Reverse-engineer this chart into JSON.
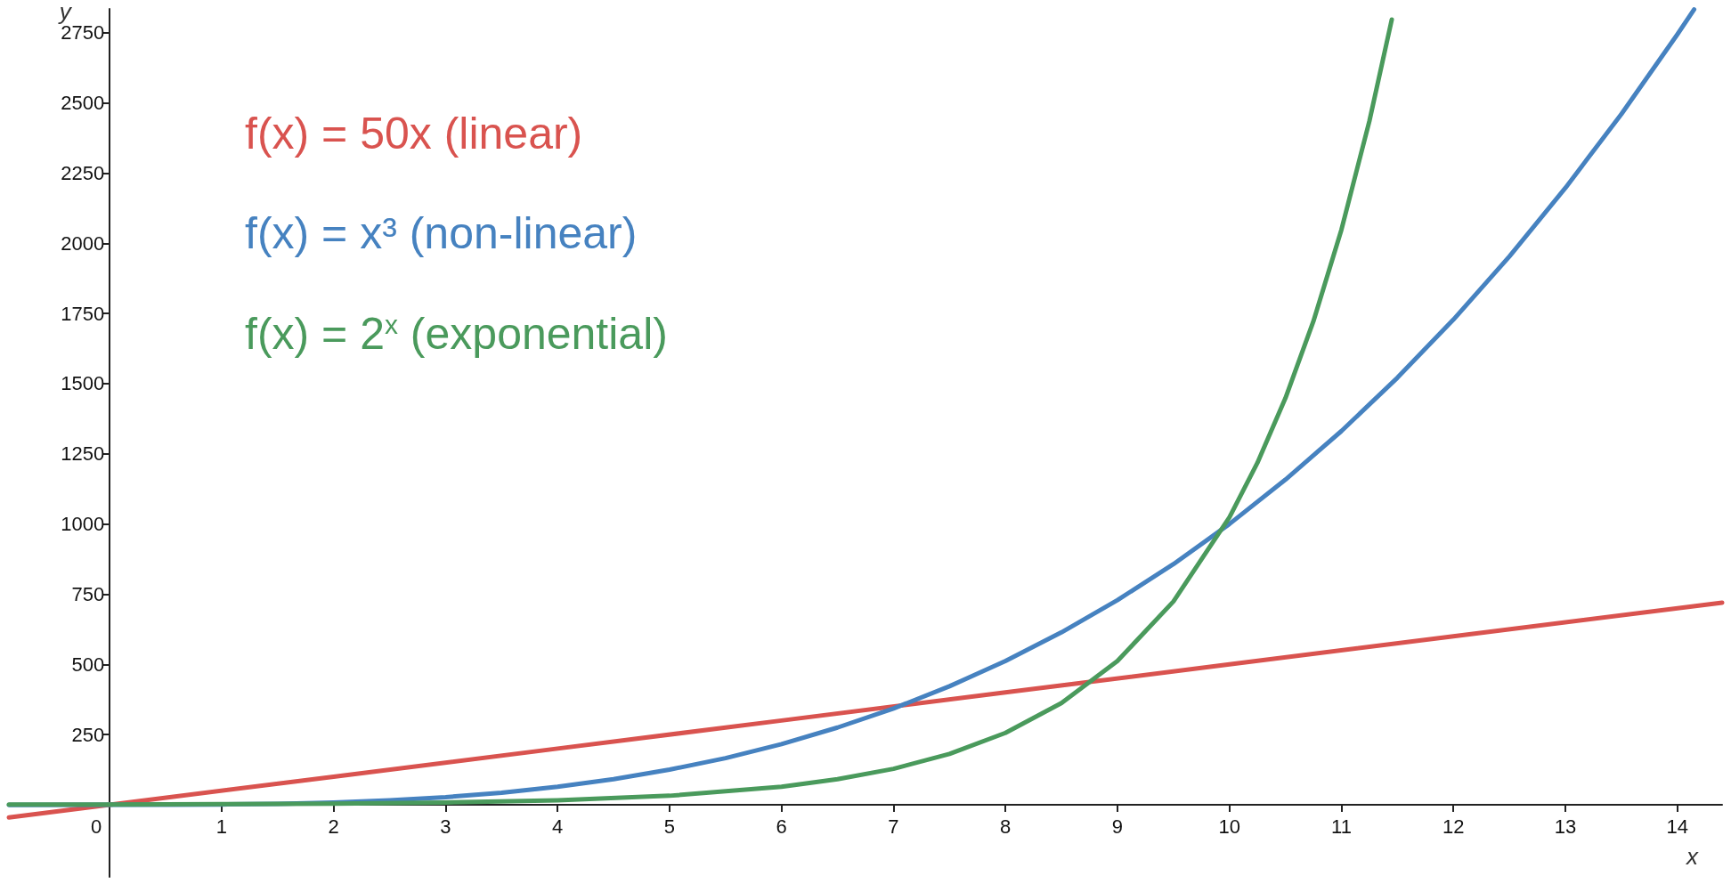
{
  "chart_data": {
    "type": "line",
    "xlabel": "x",
    "ylabel": "y",
    "xlim": [
      -0.9,
      14.4
    ],
    "ylim": [
      -257,
      2835
    ],
    "xticks": [
      0,
      1,
      2,
      3,
      4,
      5,
      6,
      7,
      8,
      9,
      10,
      11,
      12,
      13,
      14
    ],
    "yticks": [
      250,
      500,
      750,
      1000,
      1250,
      1500,
      1750,
      2000,
      2250,
      2500,
      2750
    ],
    "grid": false,
    "marker": "none",
    "line_style": "solid",
    "legend": "top left",
    "series": [
      {
        "name": "f(x) = 50x (linear)",
        "color": "#d9534f",
        "x": [
          -0.9,
          0,
          2,
          4,
          6,
          8,
          10,
          12,
          14.4
        ],
        "values": [
          -45,
          0,
          100,
          200,
          300,
          400,
          500,
          600,
          720
        ]
      },
      {
        "name": "f(x) = x³ (non-linear)",
        "color": "#4682c0",
        "x": [
          -0.9,
          0,
          0.5,
          1,
          1.5,
          2,
          2.5,
          3,
          3.5,
          4,
          4.5,
          5,
          5.5,
          6,
          6.5,
          7,
          7.5,
          8,
          8.5,
          9,
          9.5,
          10,
          10.5,
          11,
          11.5,
          12,
          12.5,
          13,
          13.5,
          14,
          14.15
        ],
        "values": [
          -1,
          0,
          0,
          1,
          3,
          8,
          16,
          27,
          43,
          64,
          91,
          125,
          166,
          216,
          275,
          343,
          422,
          512,
          614,
          729,
          857,
          1000,
          1158,
          1331,
          1521,
          1728,
          1953,
          2197,
          2460,
          2744,
          2833
        ]
      },
      {
        "name": "f(x) = 2$^{x}$ (exponential)",
        "color": "#4a9a5c",
        "x": [
          -0.9,
          0,
          1,
          2,
          3,
          4,
          5,
          6,
          6.5,
          7,
          7.5,
          8,
          8.5,
          9,
          9.5,
          10,
          10.25,
          10.5,
          10.75,
          11,
          11.25,
          11.45
        ],
        "values": [
          1,
          1,
          2,
          4,
          8,
          16,
          32,
          64,
          91,
          128,
          181,
          256,
          362,
          512,
          724,
          1024,
          1218,
          1448,
          1722,
          2048,
          2435,
          2797
        ]
      }
    ]
  }
}
